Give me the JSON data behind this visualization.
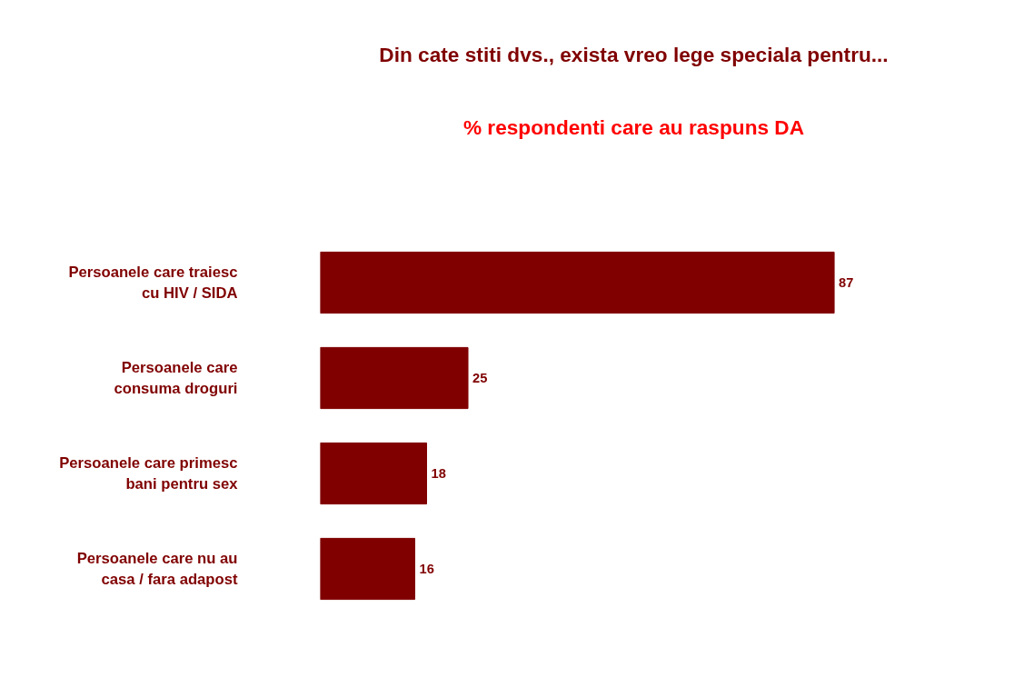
{
  "chart_data": {
    "type": "bar",
    "orientation": "horizontal",
    "title": "Din cate stiti dvs., exista vreo lege speciala pentru...",
    "subtitle": "% respondenti care au raspuns DA",
    "categories": [
      "Persoanele care traiesc\ncu HIV / SIDA",
      "Persoanele care\nconsuma droguri",
      "Persoanele care primesc\nbani pentru sex",
      "Persoanele care nu au\ncasa / fara adapost"
    ],
    "values": [
      87,
      25,
      18,
      16
    ],
    "color": "#800000",
    "data_labels": true
  }
}
